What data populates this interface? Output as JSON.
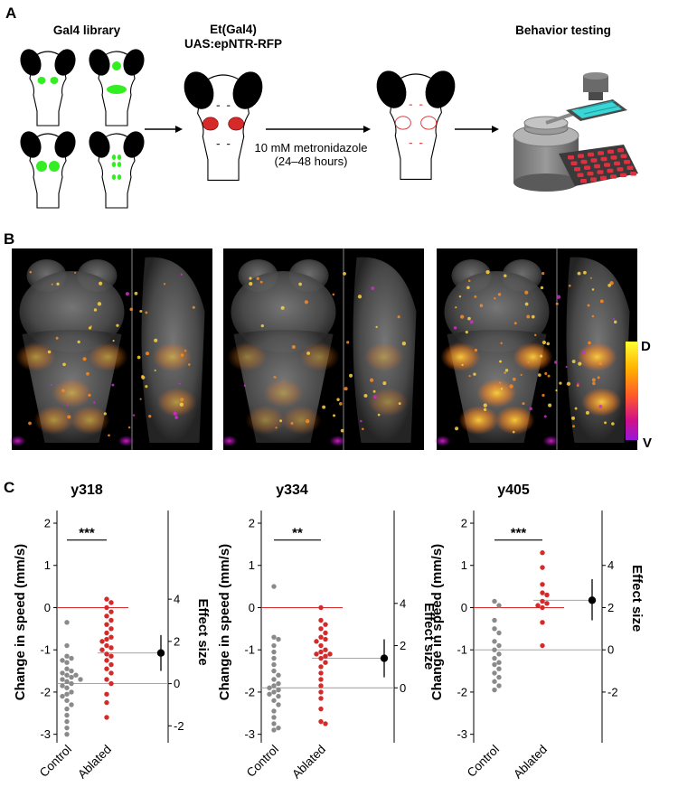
{
  "panels": {
    "a": {
      "letter": "A",
      "library_label": "Gal4 library",
      "line_label_1": "Et(Gal4)",
      "line_label_2": "UAS:epNTR-RFP",
      "treatment_1": "10 mM metronidazole",
      "treatment_2": "(24–48 hours)",
      "behavior_label": "Behavior testing",
      "expression_color": "#33ee22",
      "ntr_color": "#d62a2a",
      "eye_color": "#000000"
    },
    "b": {
      "letter": "B",
      "colorbar_top": "D",
      "colorbar_bottom": "V",
      "colorbar_colors": [
        "#ffff33",
        "#ffb000",
        "#ff5a2a",
        "#d0108a",
        "#9a18d8"
      ]
    },
    "c": {
      "letter": "C"
    }
  },
  "colors": {
    "control": "#8a8a8a",
    "ablated": "#d42a2a",
    "zero_line": "#d42a2a",
    "effect": "#000000"
  },
  "chart_data": [
    {
      "type": "scatter",
      "title": "y318",
      "ylabel": "Change in speed (mm/s)",
      "y2label": "Effect size",
      "ylim": [
        -3.2,
        2.3
      ],
      "yticks": [
        -3,
        -2,
        -1,
        0,
        1,
        2
      ],
      "y2ticks": [
        -2,
        0,
        2,
        4
      ],
      "y2_map": {
        "zero_at_y": -1.8,
        "units_per_y": 2.0
      },
      "categories": [
        "Control",
        "Ablated"
      ],
      "significance": "***",
      "series": [
        {
          "name": "Control",
          "values": [
            -0.35,
            -0.9,
            -1.15,
            -1.2,
            -1.25,
            -1.3,
            -1.45,
            -1.5,
            -1.55,
            -1.6,
            -1.6,
            -1.65,
            -1.7,
            -1.7,
            -1.75,
            -1.8,
            -1.85,
            -1.9,
            -2.0,
            -2.05,
            -2.1,
            -2.2,
            -2.3,
            -2.4,
            -2.55,
            -2.7,
            -2.85,
            -3.0
          ]
        },
        {
          "name": "Ablated",
          "values": [
            0.2,
            0.12,
            0.0,
            -0.1,
            -0.2,
            -0.3,
            -0.4,
            -0.5,
            -0.6,
            -0.7,
            -0.75,
            -0.8,
            -0.9,
            -0.95,
            -1.0,
            -1.1,
            -1.15,
            -1.25,
            -1.35,
            -1.45,
            -1.55,
            -1.7,
            -1.8,
            -2.05,
            -2.25,
            -2.6
          ]
        }
      ],
      "effect_size": {
        "value": 1.45,
        "ci": [
          0.6,
          2.3
        ]
      }
    },
    {
      "type": "scatter",
      "title": "y334",
      "ylabel": "Change in speed (mm/s)",
      "y2label": "Effect size",
      "ylim": [
        -3.2,
        2.3
      ],
      "yticks": [
        -3,
        -2,
        -1,
        0,
        1,
        2
      ],
      "y2ticks": [
        0,
        2,
        4
      ],
      "y2_map": {
        "zero_at_y": -1.9,
        "units_per_y": 2.0
      },
      "categories": [
        "Control",
        "Ablated"
      ],
      "significance": "**",
      "series": [
        {
          "name": "Control",
          "values": [
            0.5,
            -0.7,
            -0.75,
            -0.9,
            -1.05,
            -1.2,
            -1.35,
            -1.5,
            -1.6,
            -1.7,
            -1.8,
            -1.85,
            -1.9,
            -1.95,
            -2.0,
            -2.05,
            -2.1,
            -2.2,
            -2.3,
            -2.45,
            -2.6,
            -2.75,
            -2.85,
            -2.9
          ]
        },
        {
          "name": "Ablated",
          "values": [
            0.0,
            -0.3,
            -0.4,
            -0.5,
            -0.6,
            -0.7,
            -0.75,
            -0.8,
            -0.9,
            -1.0,
            -1.05,
            -1.1,
            -1.1,
            -1.15,
            -1.2,
            -1.3,
            -1.4,
            -1.55,
            -1.7,
            -1.85,
            -2.0,
            -2.15,
            -2.4,
            -2.7,
            -2.75
          ]
        }
      ],
      "effect_size": {
        "value": 1.4,
        "ci": [
          0.5,
          2.3
        ]
      }
    },
    {
      "type": "scatter",
      "title": "y405",
      "ylabel": "Change in speed (mm/s)",
      "y2label": "Effect size",
      "ylim": [
        -3.2,
        2.3
      ],
      "yticks": [
        -3,
        -2,
        -1,
        0,
        1,
        2
      ],
      "y2ticks": [
        -2,
        0,
        2,
        4
      ],
      "y2_map": {
        "zero_at_y": -1.0,
        "units_per_y": 2.0
      },
      "categories": [
        "Control",
        "Ablated"
      ],
      "significance": "***",
      "series": [
        {
          "name": "Control",
          "values": [
            0.15,
            0.05,
            -0.3,
            -0.5,
            -0.6,
            -0.8,
            -0.9,
            -1.0,
            -1.1,
            -1.2,
            -1.3,
            -1.35,
            -1.45,
            -1.55,
            -1.65,
            -1.75,
            -1.85,
            -1.95
          ]
        },
        {
          "name": "Ablated",
          "values": [
            1.3,
            0.95,
            0.55,
            0.35,
            0.3,
            0.15,
            0.1,
            0.05,
            0.0,
            -0.35,
            -0.9
          ]
        }
      ],
      "effect_size": {
        "value": 2.35,
        "ci": [
          1.4,
          3.35
        ]
      }
    }
  ]
}
